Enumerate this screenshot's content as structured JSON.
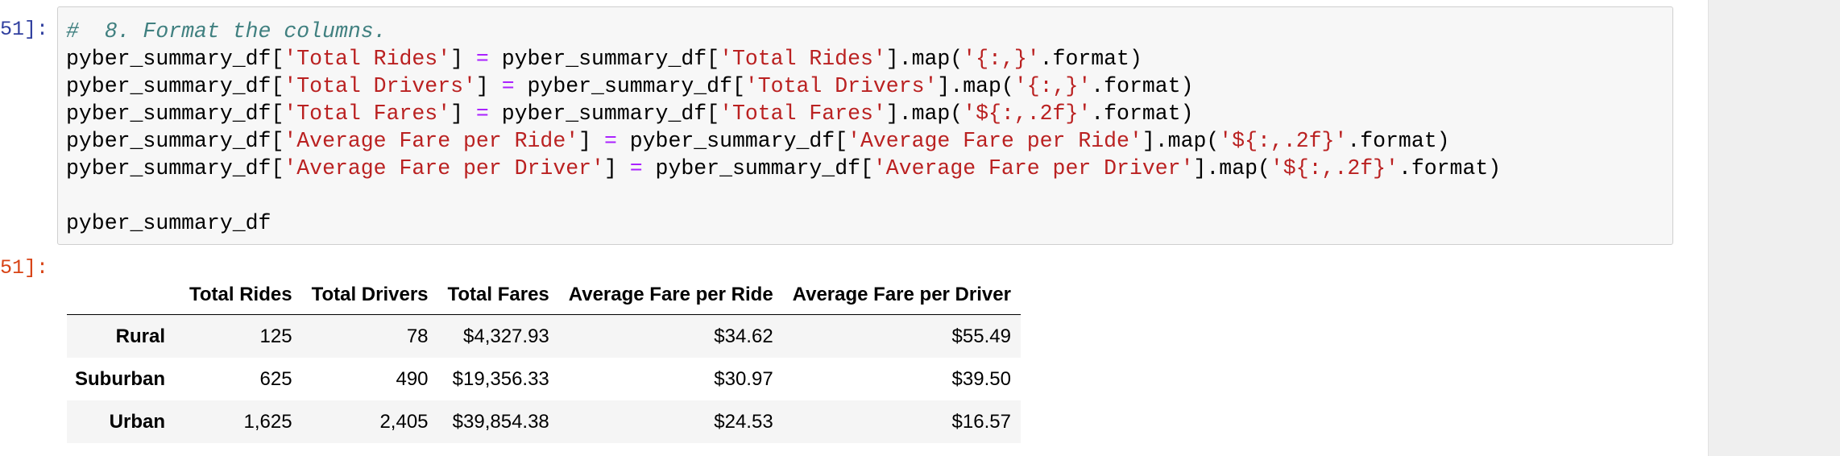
{
  "cell_in": {
    "prompt": "51]:",
    "code_lines": [
      [
        {
          "t": "comment",
          "v": "#  8. Format the columns."
        }
      ],
      [
        {
          "t": "plain",
          "v": "pyber_summary_df["
        },
        {
          "t": "str",
          "v": "'Total Rides'"
        },
        {
          "t": "plain",
          "v": "] "
        },
        {
          "t": "op",
          "v": "="
        },
        {
          "t": "plain",
          "v": " pyber_summary_df["
        },
        {
          "t": "str",
          "v": "'Total Rides'"
        },
        {
          "t": "plain",
          "v": "].map("
        },
        {
          "t": "str",
          "v": "'{:,}'"
        },
        {
          "t": "plain",
          "v": ".format)"
        }
      ],
      [
        {
          "t": "plain",
          "v": "pyber_summary_df["
        },
        {
          "t": "str",
          "v": "'Total Drivers'"
        },
        {
          "t": "plain",
          "v": "] "
        },
        {
          "t": "op",
          "v": "="
        },
        {
          "t": "plain",
          "v": " pyber_summary_df["
        },
        {
          "t": "str",
          "v": "'Total Drivers'"
        },
        {
          "t": "plain",
          "v": "].map("
        },
        {
          "t": "str",
          "v": "'{:,}'"
        },
        {
          "t": "plain",
          "v": ".format)"
        }
      ],
      [
        {
          "t": "plain",
          "v": "pyber_summary_df["
        },
        {
          "t": "str",
          "v": "'Total Fares'"
        },
        {
          "t": "plain",
          "v": "] "
        },
        {
          "t": "op",
          "v": "="
        },
        {
          "t": "plain",
          "v": " pyber_summary_df["
        },
        {
          "t": "str",
          "v": "'Total Fares'"
        },
        {
          "t": "plain",
          "v": "].map("
        },
        {
          "t": "str",
          "v": "'${:,.2f}'"
        },
        {
          "t": "plain",
          "v": ".format)"
        }
      ],
      [
        {
          "t": "plain",
          "v": "pyber_summary_df["
        },
        {
          "t": "str",
          "v": "'Average Fare per Ride'"
        },
        {
          "t": "plain",
          "v": "] "
        },
        {
          "t": "op",
          "v": "="
        },
        {
          "t": "plain",
          "v": " pyber_summary_df["
        },
        {
          "t": "str",
          "v": "'Average Fare per Ride'"
        },
        {
          "t": "plain",
          "v": "].map("
        },
        {
          "t": "str",
          "v": "'${:,.2f}'"
        },
        {
          "t": "plain",
          "v": ".format)"
        }
      ],
      [
        {
          "t": "plain",
          "v": "pyber_summary_df["
        },
        {
          "t": "str",
          "v": "'Average Fare per Driver'"
        },
        {
          "t": "plain",
          "v": "] "
        },
        {
          "t": "op",
          "v": "="
        },
        {
          "t": "plain",
          "v": " pyber_summary_df["
        },
        {
          "t": "str",
          "v": "'Average Fare per Driver'"
        },
        {
          "t": "plain",
          "v": "].map("
        },
        {
          "t": "str",
          "v": "'${:,.2f}'"
        },
        {
          "t": "plain",
          "v": ".format)"
        }
      ],
      [],
      [
        {
          "t": "plain",
          "v": "pyber_summary_df"
        }
      ]
    ]
  },
  "cell_out": {
    "prompt": "51]:",
    "table": {
      "columns": [
        "Total Rides",
        "Total Drivers",
        "Total Fares",
        "Average Fare per Ride",
        "Average Fare per Driver"
      ],
      "rows": [
        {
          "index": "Rural",
          "values": [
            "125",
            "78",
            "$4,327.93",
            "$34.62",
            "$55.49"
          ]
        },
        {
          "index": "Suburban",
          "values": [
            "625",
            "490",
            "$19,356.33",
            "$30.97",
            "$39.50"
          ]
        },
        {
          "index": "Urban",
          "values": [
            "1,625",
            "2,405",
            "$39,854.38",
            "$24.53",
            "$16.57"
          ]
        }
      ]
    }
  },
  "colors": {
    "prompt_in": "#303f9f",
    "prompt_out": "#d84315",
    "comment": "#408080",
    "string": "#ba2121",
    "operator": "#aa22ff"
  }
}
